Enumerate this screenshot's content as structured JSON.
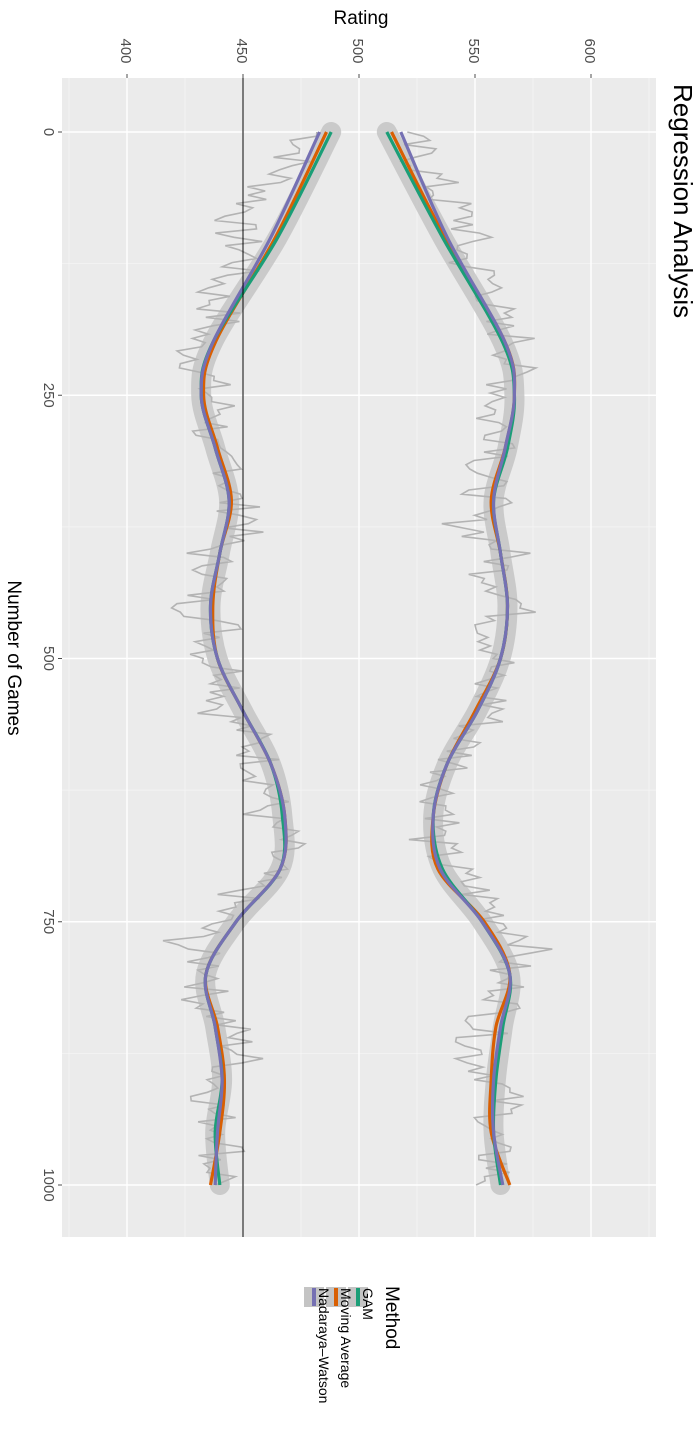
{
  "chart_data": {
    "type": "line",
    "title": "Regression Analysis",
    "xlabel": "Number of Games",
    "ylabel": "Rating",
    "xlim": [
      -50,
      1050
    ],
    "ylim": [
      375,
      630
    ],
    "x_ticks": [
      0,
      250,
      500,
      750,
      1000
    ],
    "y_ticks": [
      400,
      450,
      500,
      550,
      600
    ],
    "hline": 450,
    "grid": true,
    "legend": {
      "title": "Method",
      "position": "bottom",
      "entries": [
        "GAM",
        "Moving Average",
        "Nadaraya–Watson"
      ]
    },
    "colors": {
      "GAM": "#1b9e77",
      "Moving Average": "#d95f02",
      "Nadaraya–Watson": "#7570b3",
      "raw": "#b3b3b3",
      "band": "#c4c4c4",
      "panel": "#ebebeb",
      "hline": "#000000"
    },
    "series": [
      {
        "name": "GAM",
        "x": [
          0,
          100,
          200,
          250,
          300,
          350,
          400,
          450,
          500,
          550,
          600,
          650,
          700,
          750,
          800,
          850,
          900,
          950,
          1000
        ],
        "lower": [
          488,
          465,
          437,
          432,
          438,
          444,
          440,
          436,
          439,
          450,
          462,
          467,
          466,
          447,
          434,
          438,
          441,
          438,
          440
        ],
        "upper": [
          512,
          536,
          562,
          567,
          564,
          558,
          561,
          564,
          561,
          551,
          538,
          532,
          536,
          553,
          565,
          562,
          559,
          558,
          561
        ]
      },
      {
        "name": "Moving Average",
        "x": [
          0,
          100,
          200,
          250,
          300,
          350,
          400,
          450,
          500,
          550,
          600,
          650,
          700,
          750,
          800,
          850,
          900,
          950,
          1000
        ],
        "lower": [
          486,
          464,
          438,
          433,
          439,
          445,
          440,
          437,
          439,
          450,
          462,
          468,
          466,
          447,
          434,
          439,
          442,
          440,
          436
        ],
        "upper": [
          514,
          537,
          563,
          567,
          563,
          557,
          561,
          564,
          561,
          550,
          538,
          532,
          534,
          554,
          565,
          559,
          557,
          557,
          565
        ]
      },
      {
        "name": "Nadaraya–Watson",
        "x": [
          0,
          100,
          200,
          250,
          300,
          350,
          400,
          450,
          500,
          550,
          600,
          650,
          700,
          750,
          800,
          850,
          900,
          950,
          1000
        ],
        "lower": [
          483,
          462,
          437,
          432,
          438,
          444,
          440,
          436,
          439,
          450,
          462,
          468,
          466,
          447,
          434,
          438,
          441,
          439,
          438
        ],
        "upper": [
          518,
          538,
          563,
          567,
          563,
          558,
          561,
          564,
          561,
          551,
          538,
          532,
          535,
          553,
          565,
          561,
          558,
          558,
          562
        ]
      }
    ],
    "raw_bands": {
      "x": [
        0,
        30,
        60,
        90,
        120,
        150,
        180,
        200,
        220,
        250,
        270,
        300,
        320,
        350,
        370,
        400,
        420,
        450,
        470,
        500,
        520,
        550,
        570,
        600,
        630,
        650,
        670,
        700,
        720,
        750,
        770,
        800,
        820,
        850,
        880,
        900,
        930,
        960,
        980,
        1000
      ],
      "lower": [
        482,
        470,
        458,
        445,
        452,
        438,
        440,
        428,
        432,
        436,
        442,
        430,
        448,
        444,
        455,
        434,
        440,
        428,
        442,
        436,
        448,
        440,
        452,
        458,
        462,
        458,
        468,
        460,
        450,
        438,
        424,
        440,
        432,
        444,
        450,
        440,
        436,
        446,
        438,
        444
      ],
      "upper": [
        518,
        528,
        536,
        548,
        545,
        560,
        556,
        570,
        566,
        564,
        556,
        568,
        552,
        556,
        545,
        564,
        558,
        570,
        558,
        562,
        552,
        560,
        548,
        542,
        535,
        540,
        530,
        540,
        550,
        562,
        576,
        560,
        566,
        554,
        550,
        560,
        562,
        554,
        560,
        556
      ]
    }
  }
}
